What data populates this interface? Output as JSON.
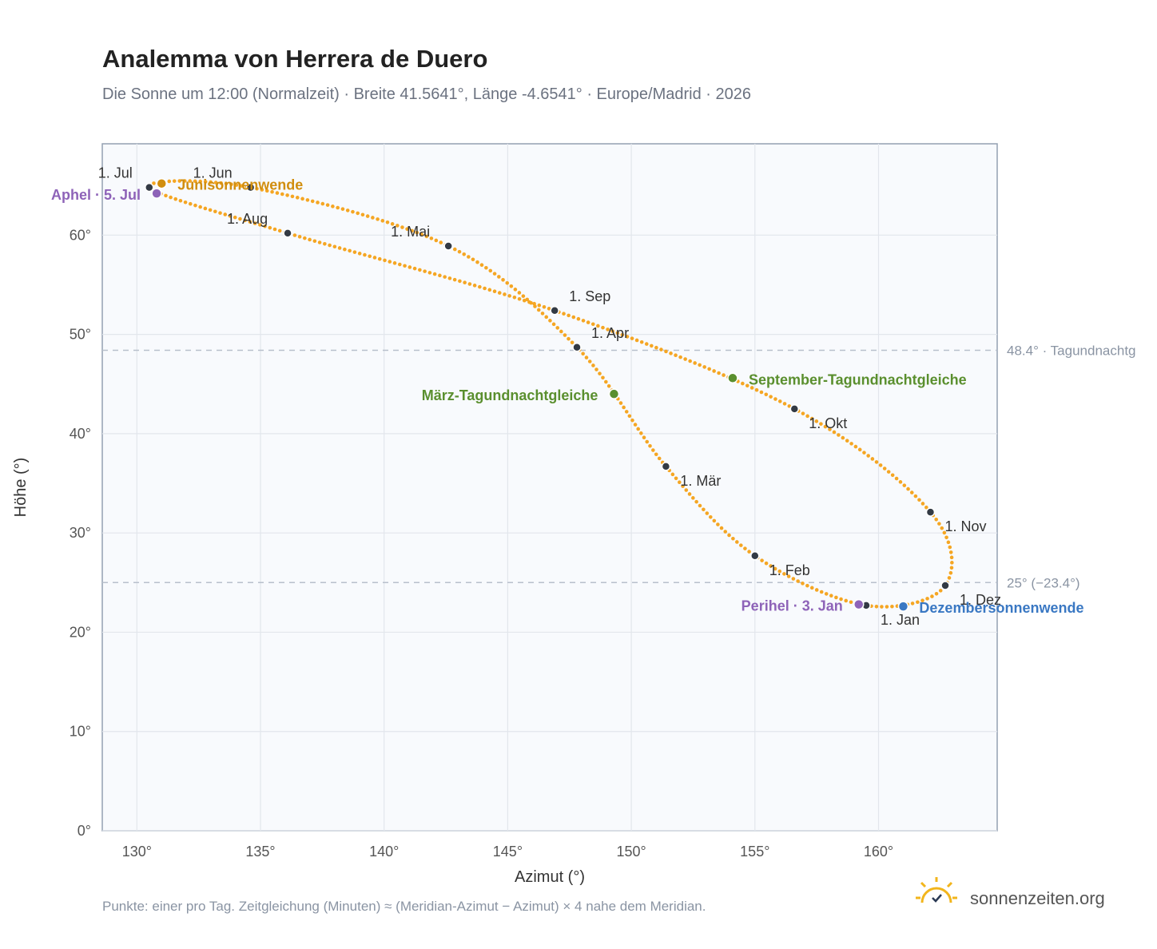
{
  "header": {
    "title": "Analemma von Herrera de Duero",
    "subtitle": "Die Sonne um 12:00 (Normalzeit) · Breite 41.5641°, Länge -4.6541° · Europe/Madrid · 2026"
  },
  "footer": {
    "note": "Punkte: einer pro Tag. Zeitgleichung (Minuten) ≈ (Meridian-Azimut − Azimut) × 4 nahe dem Meridian.",
    "brand": "sonnenzeiten.org",
    "brand_icon": "sun-checkmark-icon"
  },
  "colors": {
    "curve": "#f5a623",
    "month_point": "#333a44",
    "solstice_june": "#d18e0f",
    "solstice_december": "#3a78c3",
    "equinox": "#5a8f2e",
    "apsis": "#8e63b8",
    "grid": "#e2e6ec",
    "plot_bg": "#f8fafd",
    "reference_line": "#b8c0cc"
  },
  "chart_data": {
    "type": "scatter",
    "title": "Analemma von Herrera de Duero",
    "xlabel": "Azimut (°)",
    "ylabel": "Höhe (°)",
    "xlim": [
      128.6,
      164.8
    ],
    "ylim": [
      0,
      69.2
    ],
    "xticks": [
      130,
      135,
      140,
      145,
      150,
      155,
      160
    ],
    "xtick_labels": [
      "130°",
      "135°",
      "140°",
      "145°",
      "150°",
      "155°",
      "160°"
    ],
    "yticks": [
      0,
      10,
      20,
      30,
      40,
      50,
      60
    ],
    "ytick_labels": [
      "0°",
      "10°",
      "20°",
      "30°",
      "40°",
      "50°",
      "60°"
    ],
    "grid": true,
    "series": [],
    "month_points": [
      {
        "label": "1. Jan",
        "az": 159.5,
        "alt": 22.7
      },
      {
        "label": "1. Feb",
        "az": 155.0,
        "alt": 27.7
      },
      {
        "label": "1. Mär",
        "az": 151.4,
        "alt": 36.7
      },
      {
        "label": "1. Apr",
        "az": 147.8,
        "alt": 48.7
      },
      {
        "label": "1. Mai",
        "az": 142.6,
        "alt": 58.9
      },
      {
        "label": "1. Jun",
        "az": 134.6,
        "alt": 64.8
      },
      {
        "label": "1. Jul",
        "az": 130.5,
        "alt": 64.8
      },
      {
        "label": "1. Aug",
        "az": 136.1,
        "alt": 60.2
      },
      {
        "label": "1. Sep",
        "az": 146.9,
        "alt": 52.4
      },
      {
        "label": "1. Okt",
        "az": 156.6,
        "alt": 42.5
      },
      {
        "label": "1. Nov",
        "az": 162.1,
        "alt": 32.1
      },
      {
        "label": "1. Dez",
        "az": 162.7,
        "alt": 24.7
      }
    ],
    "events": [
      {
        "label": "Junisonnenwende",
        "az": 131.0,
        "alt": 65.2,
        "kind": "solstice_june"
      },
      {
        "label": "Dezembersonnenwende",
        "az": 161.0,
        "alt": 22.6,
        "kind": "solstice_december"
      },
      {
        "label": "März-Tagundnachtgleiche",
        "az": 149.3,
        "alt": 44.0,
        "kind": "equinox"
      },
      {
        "label": "September-Tagundnachtgleiche",
        "az": 154.1,
        "alt": 45.6,
        "kind": "equinox"
      },
      {
        "label": "Aphel · 5. Jul",
        "az": 130.8,
        "alt": 64.2,
        "kind": "apsis"
      },
      {
        "label": "Perihel · 3. Jan",
        "az": 159.2,
        "alt": 22.8,
        "kind": "apsis"
      }
    ],
    "reference_lines": [
      {
        "alt": 48.4,
        "label": "48.4° · Tagundnachtg"
      },
      {
        "alt": 25.0,
        "label": "25° (−23.4°)"
      }
    ]
  }
}
